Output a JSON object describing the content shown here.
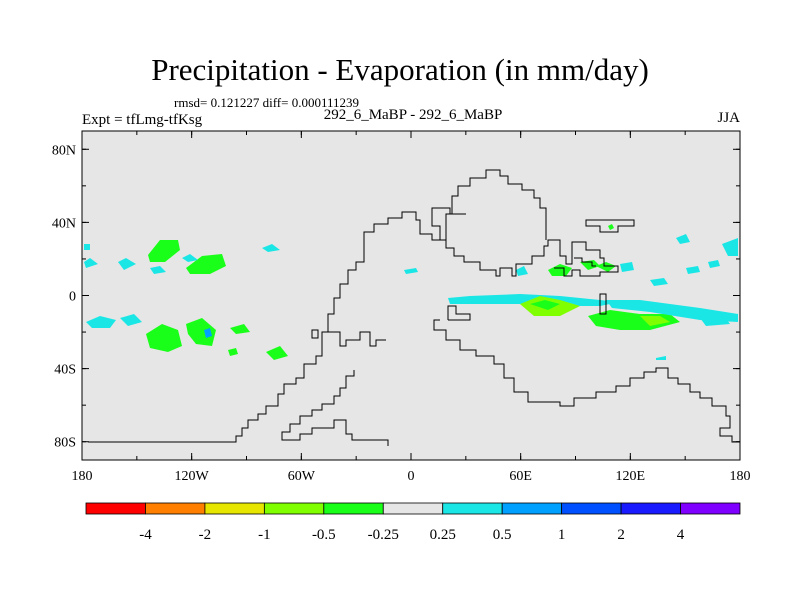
{
  "title": "Precipitation - Evaporation (in mm/day)",
  "stats": "rmsd= 0.121227 diff= 0.000111239",
  "experiment": "Expt = tfLmg-tfKsg",
  "case_label": "292_6_MaBP - 292_6_MaBP",
  "season": "JJA",
  "map": {
    "background_color": "#e6e6e6",
    "lat_labels": [
      "80N",
      "40N",
      "0",
      "40S",
      "80S"
    ],
    "lon_labels": [
      "180",
      "120W",
      "60W",
      "0",
      "60E",
      "120E",
      "180"
    ],
    "lat_values": [
      80,
      40,
      0,
      -40,
      -80
    ],
    "lon_values": [
      -180,
      -120,
      -60,
      0,
      60,
      120,
      180
    ]
  },
  "colorbar": {
    "colors": [
      "#ff0000",
      "#ff8000",
      "#e6e600",
      "#80ff00",
      "#1aff1a",
      "#e6e6e6",
      "#1ae6e6",
      "#00a0ff",
      "#0050ff",
      "#1a1aff",
      "#8000ff"
    ],
    "labels": [
      "-4",
      "-2",
      "-1",
      "-0.5",
      "-0.25",
      "0.25",
      "0.5",
      "1",
      "2",
      "4"
    ]
  }
}
